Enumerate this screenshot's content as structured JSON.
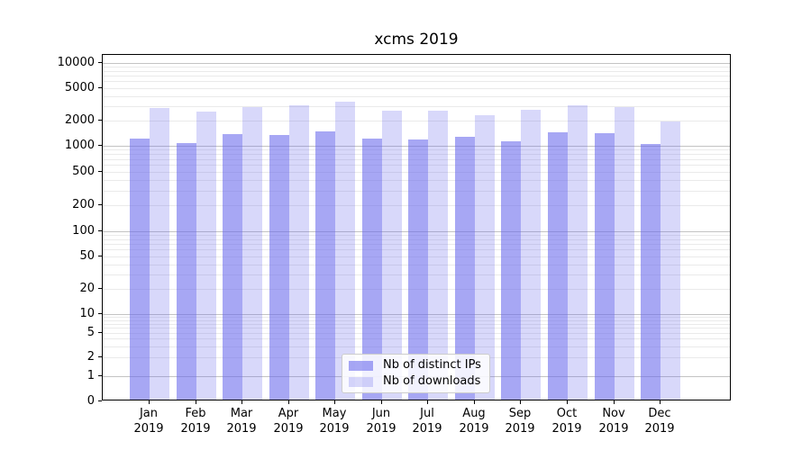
{
  "title": "xcms 2019",
  "axes": {
    "y_tick_labels": [
      "0",
      "1",
      "2",
      "5",
      "10",
      "20",
      "50",
      "100",
      "200",
      "500",
      "1000",
      "2000",
      "5000",
      "10000"
    ],
    "x_tick_months": [
      "Jan",
      "Feb",
      "Mar",
      "Apr",
      "May",
      "Jun",
      "Jul",
      "Aug",
      "Sep",
      "Oct",
      "Nov",
      "Dec"
    ],
    "x_tick_year": "2019"
  },
  "legend": {
    "items": [
      {
        "label": "Nb of distinct IPs",
        "color": "#6868EC94"
      },
      {
        "label": "Nb of downloads",
        "color": "#6868EC42"
      }
    ]
  },
  "colors": {
    "bar_dark": "#6868EC94",
    "bar_light": "#6868EC42",
    "grid_major": "#c3c3c3",
    "grid_minor": "#eaeaea"
  },
  "chart_data": {
    "type": "bar",
    "title": "xcms 2019",
    "categories": [
      "Jan 2019",
      "Feb 2019",
      "Mar 2019",
      "Apr 2019",
      "May 2019",
      "Jun 2019",
      "Jul 2019",
      "Aug 2019",
      "Sep 2019",
      "Oct 2019",
      "Nov 2019",
      "Dec 2019"
    ],
    "series": [
      {
        "name": "Nb of distinct IPs",
        "color": "#6868EC94",
        "values": [
          1150,
          1030,
          1310,
          1300,
          1420,
          1150,
          1130,
          1210,
          1080,
          1390,
          1340,
          1000
        ]
      },
      {
        "name": "Nb of downloads",
        "color": "#6868EC42",
        "values": [
          2690,
          2470,
          2800,
          2920,
          3250,
          2530,
          2500,
          2210,
          2560,
          2920,
          2760,
          1870
        ]
      }
    ],
    "xlabel": "",
    "ylabel": "",
    "yscale": "symlog",
    "ylim": [
      0,
      10000
    ],
    "y_ticks": [
      0,
      1,
      2,
      5,
      10,
      20,
      50,
      100,
      200,
      500,
      1000,
      2000,
      5000,
      10000
    ],
    "grid": true,
    "legend_position": "lower center"
  }
}
